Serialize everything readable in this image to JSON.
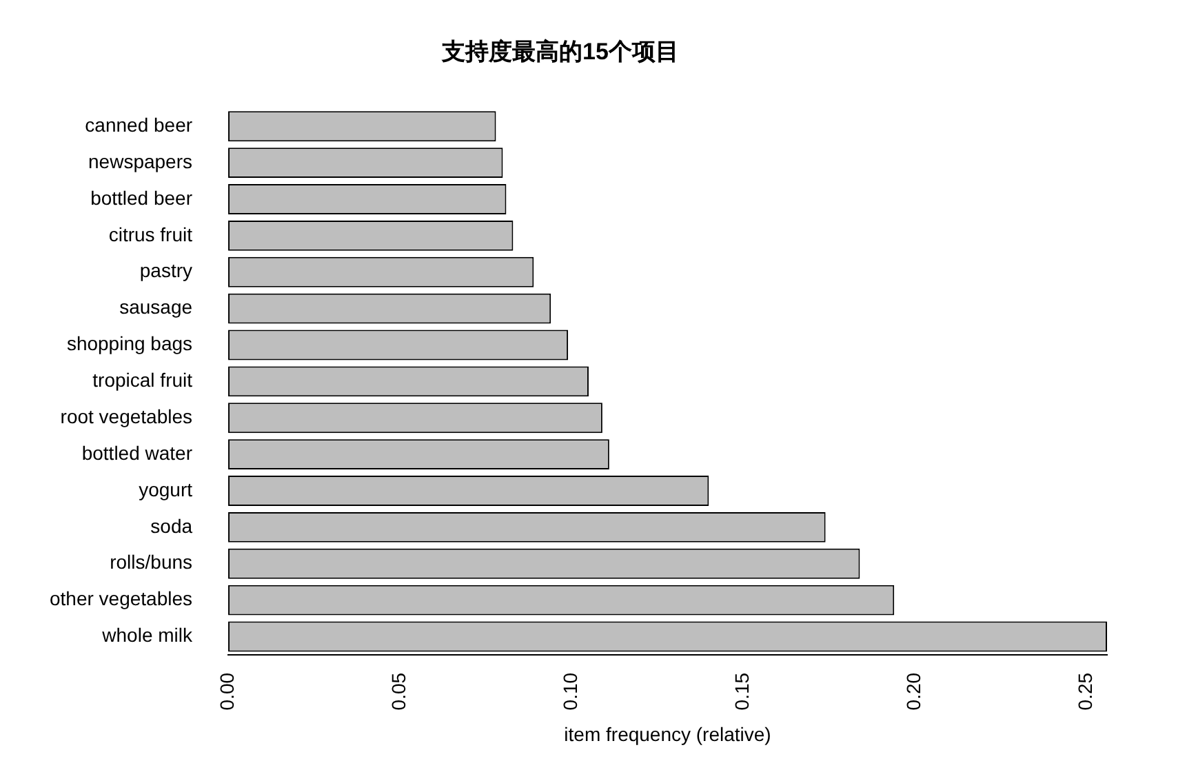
{
  "chart_data": {
    "type": "bar",
    "orientation": "horizontal",
    "title": "支持度最高的15个项目",
    "xlabel": "item frequency (relative)",
    "categories": [
      "canned beer",
      "newspapers",
      "bottled beer",
      "citrus fruit",
      "pastry",
      "sausage",
      "shopping bags",
      "tropical fruit",
      "root vegetables",
      "bottled water",
      "yogurt",
      "soda",
      "rolls/buns",
      "other vegetables",
      "whole milk"
    ],
    "values": [
      0.078,
      0.08,
      0.081,
      0.083,
      0.089,
      0.094,
      0.099,
      0.105,
      0.109,
      0.111,
      0.14,
      0.174,
      0.184,
      0.194,
      0.256
    ],
    "color": "#bebebe",
    "xlim": [
      0,
      0.256
    ],
    "xticks": [
      {
        "value": 0,
        "label": "0.00"
      },
      {
        "value": 0.05,
        "label": "0.05"
      },
      {
        "value": 0.1,
        "label": "0.10"
      },
      {
        "value": 0.15,
        "label": "0.15"
      },
      {
        "value": 0.2,
        "label": "0.20"
      },
      {
        "value": 0.25,
        "label": "0.25"
      }
    ],
    "grid": false,
    "legend": false
  }
}
